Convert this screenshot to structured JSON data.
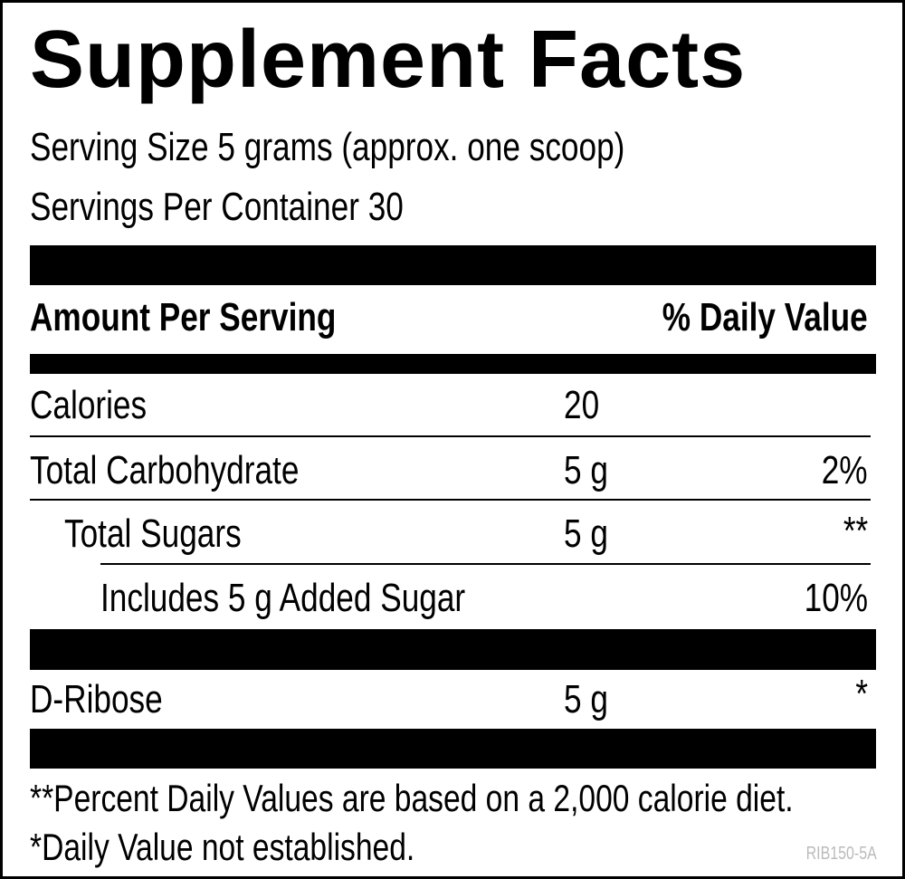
{
  "title": "Supplement Facts",
  "serving_size": "Serving Size 5 grams (approx. one scoop)",
  "servings_per_container": "Servings Per Container 30",
  "header": {
    "amount": "Amount Per Serving",
    "daily_value": "% Daily Value"
  },
  "rows": [
    {
      "name": "Calories",
      "amount": "20"
    },
    {
      "name": "Total Carbohydrate",
      "amount": "5 g",
      "daily_value": "2%"
    },
    {
      "name": "Total Sugars",
      "amount": "5 g",
      "daily_value": "**"
    },
    {
      "name": "Includes 5 g Added Sugar",
      "daily_value": "10%"
    },
    {
      "name": "D-Ribose",
      "amount": "5 g",
      "daily_value": "*"
    }
  ],
  "footnotes": [
    "**Percent Daily Values are based on a 2,000 calorie diet.",
    "*Daily Value not established."
  ],
  "code": "RIB150-5A"
}
